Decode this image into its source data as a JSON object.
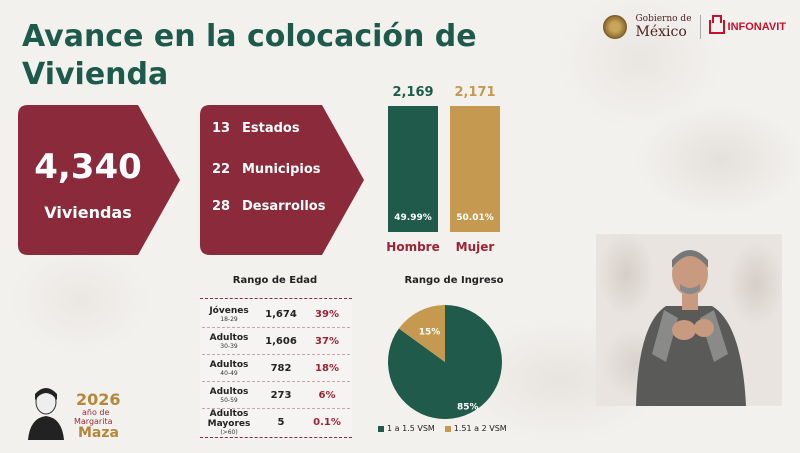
{
  "title": "Avance en la colocación de Vivienda",
  "header": {
    "gobierno_line1": "Gobierno de",
    "gobierno_line2": "México",
    "infonavit": "INFONAVIT"
  },
  "total": {
    "value": "4,340",
    "label": "Viviendas"
  },
  "counts": [
    {
      "value": "13",
      "label": "Estados"
    },
    {
      "value": "22",
      "label": "Municipios"
    },
    {
      "value": "28",
      "label": "Desarrollos"
    }
  ],
  "colors": {
    "title": "#1e5a4c",
    "maroon": "#8b2a3a",
    "green": "#1f5a4a",
    "gold": "#c59a50",
    "red_text": "#9b2335"
  },
  "chart_data": [
    {
      "type": "bar",
      "categories": [
        "Hombre",
        "Mujer"
      ],
      "values": [
        2169,
        2171
      ],
      "value_labels": [
        "2,169",
        "2,171"
      ],
      "percent_labels": [
        "49.99%",
        "50.01%"
      ]
    },
    {
      "type": "table",
      "title": "Rango de Edad",
      "rows": [
        {
          "label": "Jóvenes",
          "sub": "18-29",
          "count": "1,674",
          "pct": "39%"
        },
        {
          "label": "Adultos",
          "sub": "30-39",
          "count": "1,606",
          "pct": "37%"
        },
        {
          "label": "Adultos",
          "sub": "40-49",
          "count": "782",
          "pct": "18%"
        },
        {
          "label": "Adultos",
          "sub": "50-59",
          "count": "273",
          "pct": "6%"
        },
        {
          "label": "Adultos Mayores",
          "sub": "(>60)",
          "count": "5",
          "pct": "0.1%"
        }
      ]
    },
    {
      "type": "pie",
      "title": "Rango de Ingreso",
      "labels": [
        "1 a 1.5 VSM",
        "1.51 a 2 VSM"
      ],
      "values": [
        85,
        15
      ],
      "value_labels": [
        "85%",
        "15%"
      ]
    }
  ],
  "commemorative": {
    "year": "2026",
    "line1": "año de",
    "line2": "Margarita",
    "line3": "Maza"
  }
}
